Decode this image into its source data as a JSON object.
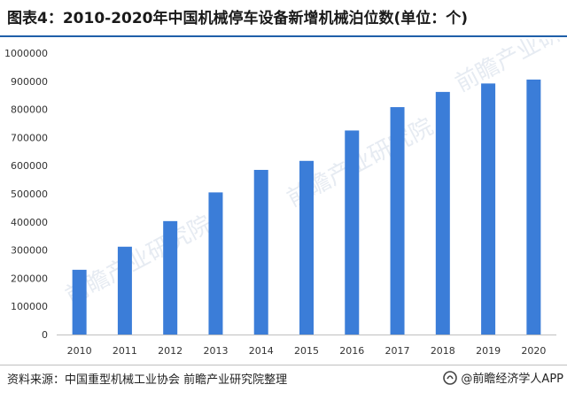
{
  "title": "图表4：2010-2020年中国机械停车设备新增机械泊位数(单位：个)",
  "watermark": "前瞻产业研究院",
  "footer": {
    "source": "资料来源：中国重型机械工业协会 前瞻产业研究院整理",
    "brand": "@前瞻经济学人APP"
  },
  "colors": {
    "bar": "#3b7dd8",
    "accent": "#1f5fa9"
  },
  "chart_data": {
    "type": "bar",
    "title": "图表4：2010-2020年中国机械停车设备新增机械泊位数(单位：个)",
    "xlabel": "",
    "ylabel": "",
    "categories": [
      "2010",
      "2011",
      "2012",
      "2013",
      "2014",
      "2015",
      "2016",
      "2017",
      "2018",
      "2019",
      "2020"
    ],
    "values": [
      230000,
      312000,
      403000,
      505000,
      585000,
      617000,
      725000,
      808000,
      862000,
      892000,
      906000
    ],
    "ylim": [
      0,
      1000000
    ],
    "yticks": [
      0,
      100000,
      200000,
      300000,
      400000,
      500000,
      600000,
      700000,
      800000,
      900000,
      1000000
    ],
    "grid": false,
    "legend": "none"
  }
}
